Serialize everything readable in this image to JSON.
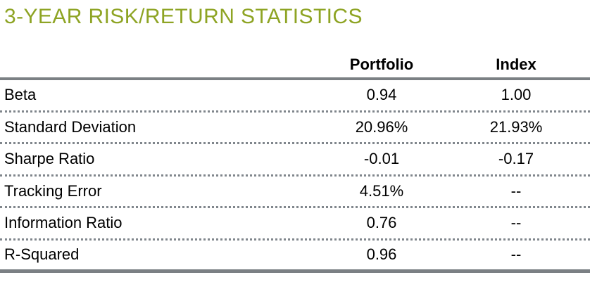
{
  "title": "3-YEAR RISK/RETURN STATISTICS",
  "colors": {
    "title_green": "#8EA424",
    "rule_gray": "#7B8084",
    "dotted_gray": "#80868C",
    "text": "#000000",
    "background": "#FFFFFF"
  },
  "table": {
    "columns": [
      "",
      "Portfolio",
      "Index"
    ],
    "rows": [
      {
        "label": "Beta",
        "portfolio": "0.94",
        "index": "1.00"
      },
      {
        "label": "Standard Deviation",
        "portfolio": "20.96%",
        "index": "21.93%"
      },
      {
        "label": "Sharpe Ratio",
        "portfolio": "-0.01",
        "index": "-0.17"
      },
      {
        "label": "Tracking Error",
        "portfolio": "4.51%",
        "index": "--"
      },
      {
        "label": "Information Ratio",
        "portfolio": "0.76",
        "index": "--"
      },
      {
        "label": "R-Squared",
        "portfolio": "0.96",
        "index": "--"
      }
    ]
  }
}
